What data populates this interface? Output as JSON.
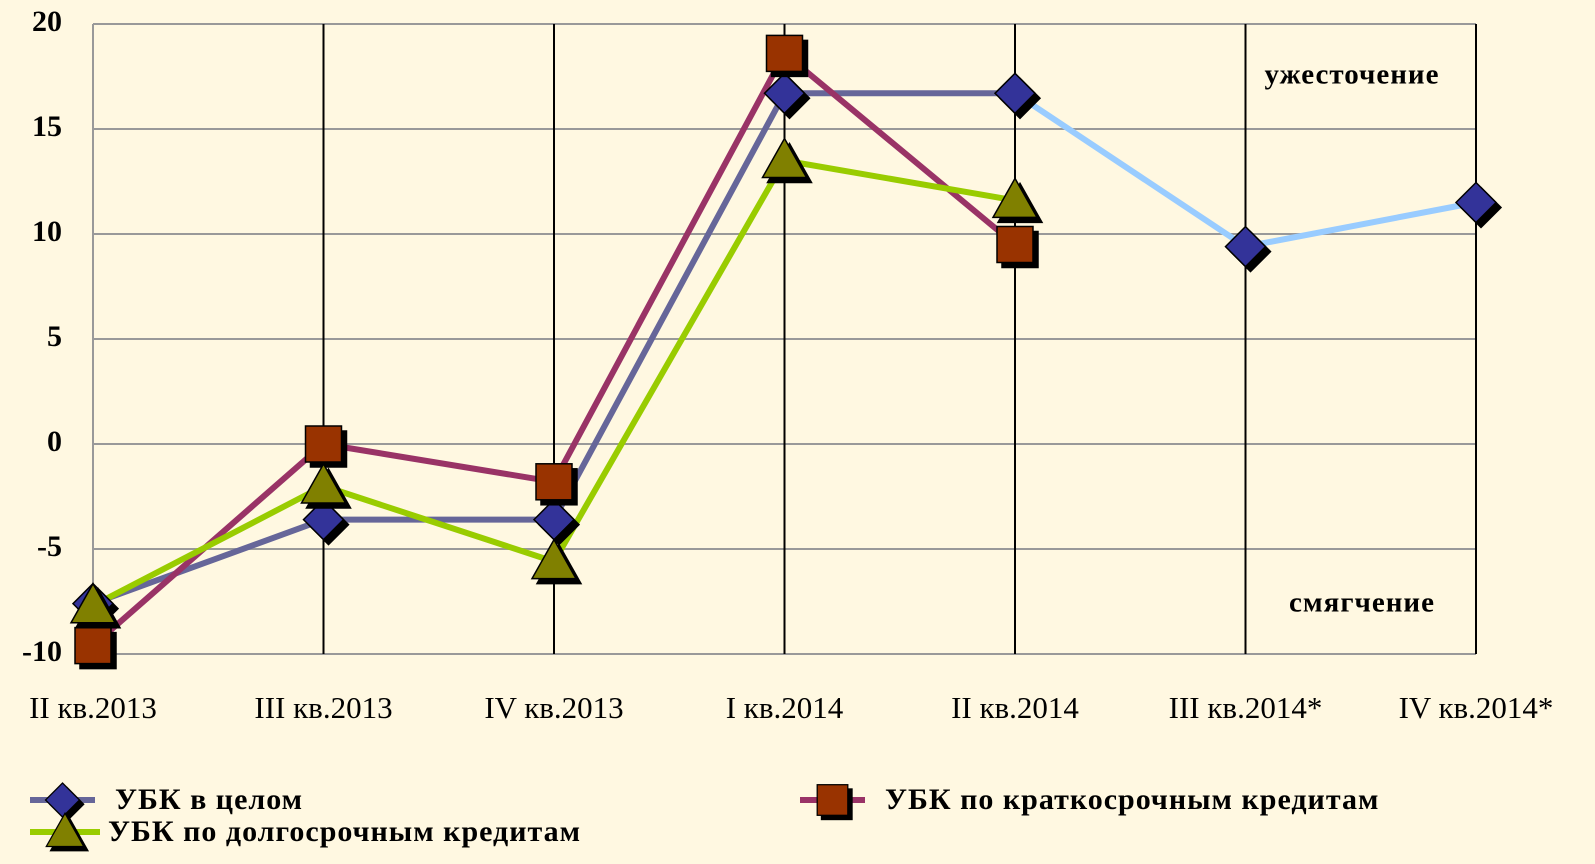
{
  "chart_data": {
    "type": "line",
    "categories": [
      "II кв.2013",
      "III кв.2013",
      "IV кв.2013",
      "I кв.2014",
      "II кв.2014",
      "III кв.2014*",
      "IV кв.2014*"
    ],
    "series": [
      {
        "name": "УБК в целом",
        "color": "#666699",
        "marker_color": "#333399",
        "marker": "diamond",
        "values": [
          -7.6,
          -3.6,
          -3.6,
          16.7,
          16.7,
          9.4,
          11.5
        ],
        "forecast_start": 4,
        "forecast_color": "#99ccff"
      },
      {
        "name": "УБК по краткосрочным кредитам",
        "color": "#993366",
        "marker_color": "#993300",
        "marker": "square",
        "values": [
          -9.6,
          0,
          -1.8,
          18.6,
          9.5,
          null,
          null
        ]
      },
      {
        "name": "УБК по долгосрочным кредитам",
        "color": "#99cc00",
        "marker_color": "#808000",
        "marker": "triangle",
        "values": [
          -7.7,
          -2.0,
          -5.6,
          13.5,
          11.6,
          null,
          null
        ]
      }
    ],
    "annotations": [
      "ужесточение",
      "смягчение"
    ],
    "ylim": [
      -10,
      20
    ],
    "yticks": [
      -10,
      -5,
      0,
      5,
      10,
      15,
      20
    ],
    "grid": true
  }
}
